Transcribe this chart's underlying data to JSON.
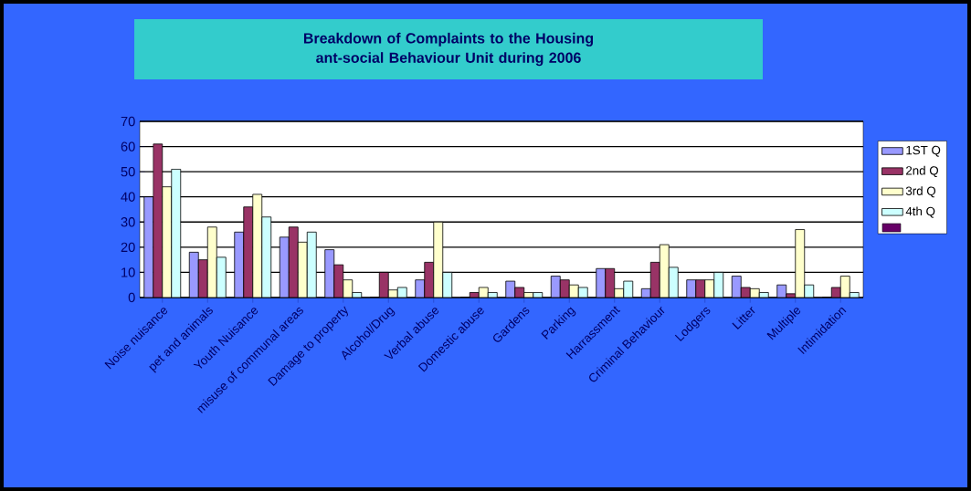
{
  "chart_data": {
    "type": "bar",
    "title": "Breakdown of Complaints to the Housing ant-social Behaviour Unit during 2006",
    "categories": [
      "Noise nuisance",
      "pet and animals",
      "Youth Nuisance",
      "misuse of communal areas",
      "Damage to property",
      "Alcohol/Drug",
      "Verbal abuse",
      "Domestic abuse",
      "Gardens",
      "Parking",
      "Harrassment",
      "Criminal Behaviour",
      "Lodgers",
      "Litter",
      "Multiple",
      "Intimidation"
    ],
    "series": [
      {
        "name": "1ST Q",
        "color": "#9999ff",
        "values": [
          40,
          18,
          26,
          24,
          19,
          0,
          7,
          0,
          6.5,
          8.5,
          11.5,
          3.5,
          7,
          8.5,
          5,
          0
        ]
      },
      {
        "name": "2nd Q",
        "color": "#993366",
        "values": [
          61,
          15,
          36,
          28,
          13,
          10,
          14,
          2,
          4,
          7,
          11.5,
          14,
          7,
          4,
          1.5,
          4
        ]
      },
      {
        "name": "3rd Q",
        "color": "#ffffcc",
        "values": [
          44,
          28,
          41,
          22,
          7,
          3,
          30,
          4,
          2,
          5,
          3.5,
          21,
          7,
          3.5,
          27,
          8.5
        ]
      },
      {
        "name": "4th Q",
        "color": "#ccffff",
        "values": [
          51,
          16,
          32,
          26,
          2,
          4,
          10,
          2,
          2,
          4,
          6.5,
          12,
          10,
          2,
          5,
          2
        ]
      },
      {
        "color": "#660066",
        "values": [
          null,
          null,
          null,
          null,
          null,
          null,
          null,
          null,
          null,
          null,
          null,
          null,
          null,
          null,
          null,
          null
        ]
      }
    ],
    "ylim": [
      0,
      70
    ],
    "yticks": [
      0,
      10,
      20,
      30,
      40,
      50,
      60,
      70
    ],
    "grid": "y",
    "legend": "right"
  }
}
